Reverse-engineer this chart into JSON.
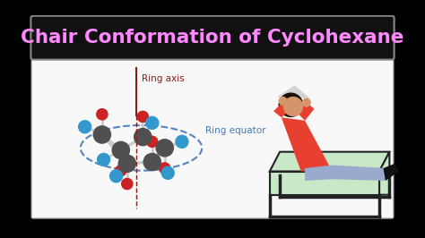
{
  "title": "Chair Conformation of Cyclohexane",
  "title_color": "#ff88ff",
  "title_bg": "#111111",
  "outer_bg": "#000000",
  "inner_bg": "#f8f8f8",
  "ring_axis_label": "Ring axis",
  "ring_axis_color": "#8b1a1a",
  "ring_equator_label": "Ring equator",
  "ring_equator_color": "#4477bb",
  "carbon_color": "#505050",
  "axial_color": "#cc2222",
  "equatorial_color": "#3399cc",
  "bond_color": "#bbbbbb",
  "chair_seat_color": "#c8e8c8",
  "chair_edge_color": "#222222",
  "shirt_color": "#e84030",
  "skin_color": "#d4956a",
  "hair_color": "#1a1008",
  "pants_color": "#99aacc",
  "shoe_color": "#111111"
}
